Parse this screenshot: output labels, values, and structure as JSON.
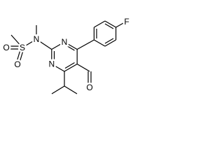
{
  "atoms": {
    "fluorine": "F",
    "sulfonamide_n": "N",
    "sulfur": "S",
    "sulfonyl_o1": "O",
    "sulfonyl_o2": "O",
    "ring_n1": "N",
    "ring_n3": "N",
    "aldehyde_o": "O"
  }
}
